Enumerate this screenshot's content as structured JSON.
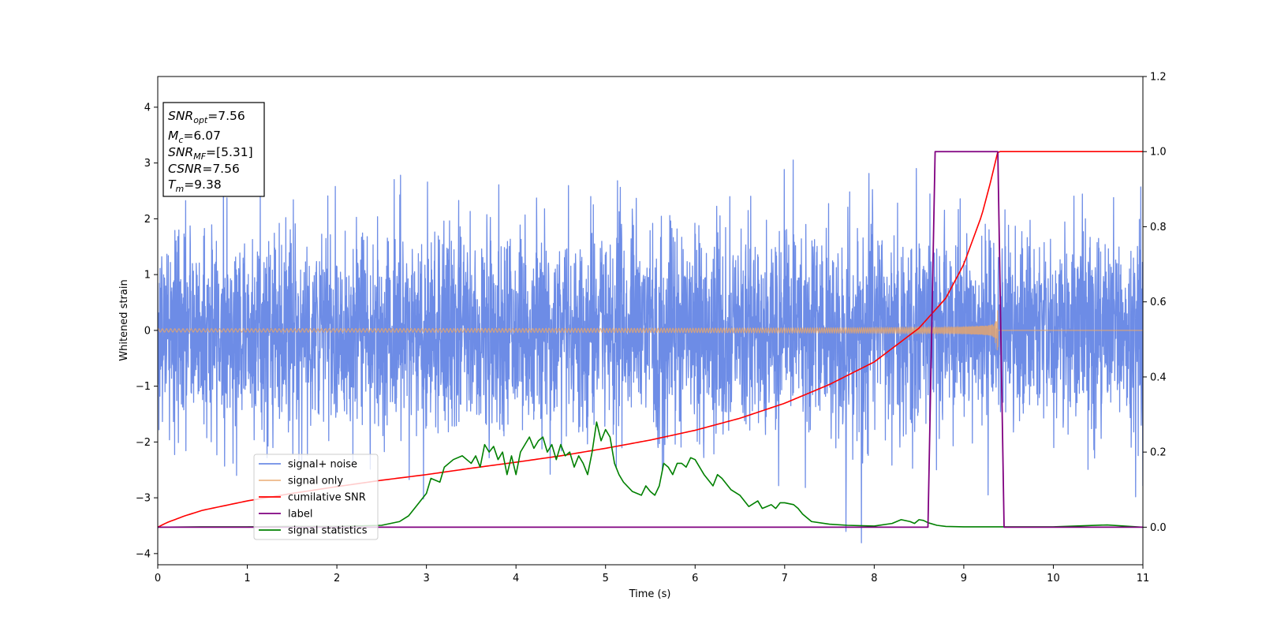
{
  "chart_data": {
    "type": "line",
    "xlabel": "Time (s)",
    "ylabel": "Whitened strain",
    "xlim": [
      0,
      11
    ],
    "ylim": [
      -4.2,
      4.55
    ],
    "y2lim": [
      -0.1,
      1.2
    ],
    "x_ticks": [
      0,
      1,
      2,
      3,
      4,
      5,
      6,
      7,
      8,
      9,
      10,
      11
    ],
    "x_tick_labels": [
      "0",
      "1",
      "2",
      "3",
      "4",
      "5",
      "6",
      "7",
      "8",
      "9",
      "10",
      "11"
    ],
    "y_ticks": [
      -4,
      -3,
      -2,
      -1,
      0,
      1,
      2,
      3,
      4
    ],
    "y_tick_labels": [
      "−4",
      "−3",
      "−2",
      "−1",
      "0",
      "1",
      "2",
      "3",
      "4"
    ],
    "y2_ticks": [
      0.0,
      0.2,
      0.4,
      0.6,
      0.8,
      1.0,
      1.2
    ],
    "y2_tick_labels": [
      "0.0",
      "0.2",
      "0.4",
      "0.6",
      "0.8",
      "1.0",
      "1.2"
    ],
    "grid": false,
    "legend_position": "lower-left",
    "info_box": {
      "position": "top-left",
      "lines": [
        {
          "main": "SNR",
          "sub": "opt",
          "value": "=7.56"
        },
        {
          "main": "M",
          "sub": "c",
          "value": "=6.07"
        },
        {
          "main": "SNR",
          "sub": "MF",
          "value": "=[5.31]"
        },
        {
          "main": "CSNR",
          "sub": "",
          "value": "=7.56"
        },
        {
          "main": "T",
          "sub": "m",
          "value": "=9.38"
        }
      ]
    },
    "series": [
      {
        "name": "signal+ noise",
        "axis": "left",
        "color": "#6d8ce6",
        "style": "noise",
        "amplitude_std": 1.0,
        "x_range": [
          0,
          11
        ]
      },
      {
        "name": "signal only",
        "axis": "left",
        "color": "#e8a66a",
        "style": "chirp",
        "merger_time": 9.38,
        "peak_amplitude": 1.0,
        "post_merger_value": 0.0
      },
      {
        "name": "cumilative SNR",
        "axis": "right",
        "color": "#ff0000",
        "x": [
          0,
          0.1,
          0.3,
          0.5,
          1,
          1.5,
          2,
          2.5,
          3,
          3.5,
          4,
          4.5,
          5,
          5.5,
          6,
          6.5,
          7,
          7.5,
          8,
          8.5,
          8.8,
          9.0,
          9.2,
          9.3,
          9.38,
          9.4,
          11
        ],
        "y": [
          0.0,
          0.012,
          0.03,
          0.045,
          0.07,
          0.09,
          0.108,
          0.125,
          0.14,
          0.157,
          0.173,
          0.19,
          0.21,
          0.232,
          0.258,
          0.29,
          0.33,
          0.38,
          0.44,
          0.53,
          0.61,
          0.7,
          0.83,
          0.92,
          1.0,
          1.0,
          1.0
        ]
      },
      {
        "name": "label",
        "axis": "right",
        "color": "#800080",
        "x": [
          0,
          8.6,
          8.68,
          9.38,
          9.45,
          11
        ],
        "y": [
          0,
          0,
          1,
          1,
          0,
          0
        ]
      },
      {
        "name": "signal statistics",
        "axis": "right",
        "color": "#008000",
        "x": [
          0,
          0.5,
          1,
          1.5,
          2,
          2.5,
          2.7,
          2.8,
          2.9,
          3.0,
          3.05,
          3.15,
          3.2,
          3.3,
          3.4,
          3.5,
          3.55,
          3.6,
          3.65,
          3.7,
          3.75,
          3.8,
          3.85,
          3.9,
          3.95,
          4.0,
          4.05,
          4.1,
          4.15,
          4.2,
          4.25,
          4.3,
          4.35,
          4.4,
          4.45,
          4.5,
          4.55,
          4.6,
          4.65,
          4.7,
          4.75,
          4.8,
          4.85,
          4.9,
          4.95,
          5.0,
          5.05,
          5.1,
          5.15,
          5.2,
          5.3,
          5.4,
          5.45,
          5.5,
          5.55,
          5.6,
          5.65,
          5.7,
          5.75,
          5.8,
          5.85,
          5.9,
          5.95,
          6.0,
          6.1,
          6.2,
          6.25,
          6.3,
          6.4,
          6.5,
          6.6,
          6.7,
          6.75,
          6.8,
          6.85,
          6.9,
          6.95,
          7.0,
          7.1,
          7.15,
          7.2,
          7.3,
          7.5,
          7.7,
          8.0,
          8.2,
          8.3,
          8.4,
          8.45,
          8.5,
          8.55,
          8.6,
          8.7,
          8.8,
          9.0,
          9.4,
          10.0,
          10.6,
          11.0
        ],
        "y": [
          0.0,
          0.001,
          0.001,
          0.002,
          0.002,
          0.005,
          0.015,
          0.03,
          0.06,
          0.09,
          0.13,
          0.12,
          0.16,
          0.18,
          0.19,
          0.17,
          0.19,
          0.16,
          0.22,
          0.2,
          0.215,
          0.18,
          0.2,
          0.14,
          0.19,
          0.14,
          0.2,
          0.22,
          0.24,
          0.21,
          0.23,
          0.24,
          0.2,
          0.22,
          0.18,
          0.22,
          0.19,
          0.2,
          0.16,
          0.19,
          0.17,
          0.14,
          0.2,
          0.28,
          0.23,
          0.26,
          0.24,
          0.17,
          0.14,
          0.12,
          0.095,
          0.085,
          0.11,
          0.095,
          0.085,
          0.11,
          0.17,
          0.16,
          0.14,
          0.17,
          0.17,
          0.16,
          0.185,
          0.18,
          0.14,
          0.11,
          0.14,
          0.13,
          0.1,
          0.085,
          0.055,
          0.07,
          0.05,
          0.055,
          0.06,
          0.05,
          0.065,
          0.065,
          0.06,
          0.05,
          0.035,
          0.015,
          0.008,
          0.005,
          0.003,
          0.01,
          0.02,
          0.015,
          0.01,
          0.02,
          0.018,
          0.012,
          0.005,
          0.002,
          0.001,
          0.001,
          0.001,
          0.006,
          0.0
        ]
      }
    ]
  }
}
